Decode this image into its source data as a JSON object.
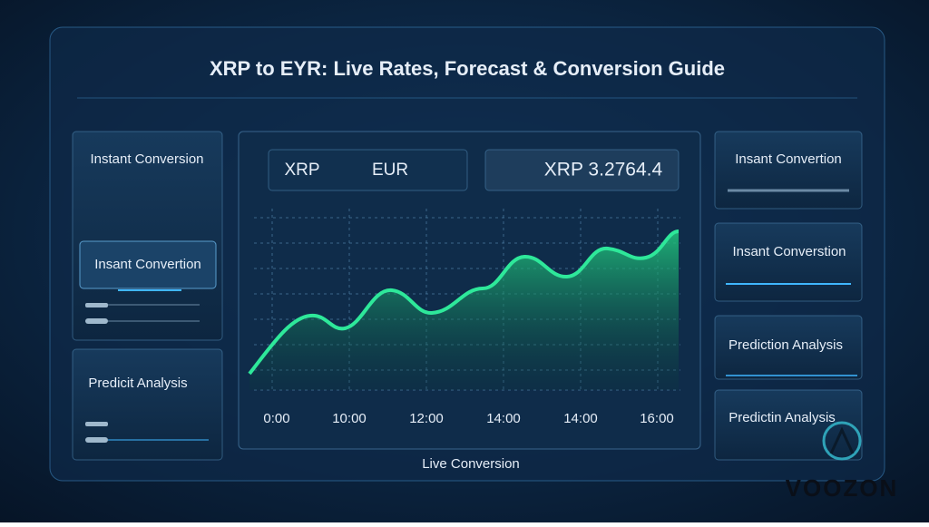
{
  "header": {
    "title": "XRP to EYR: Live Rates, Forecast & Conversion Guide"
  },
  "left_panels": [
    {
      "title": "Instant Conversion",
      "button": "Insant Convertion"
    },
    {
      "title": "Predicit Analysis"
    }
  ],
  "converter": {
    "from": "XRP",
    "to": "EUR",
    "result": "XRP 3.2764.4"
  },
  "chart": {
    "x_labels": [
      "0:00",
      "10:00",
      "12:00",
      "14:00",
      "14:00",
      "16:00"
    ],
    "caption": "Live Conversion"
  },
  "right_panels": [
    "Insant Convertion",
    "Insant Converstion",
    "Prediction Analysis",
    "Predictin Analysis"
  ],
  "logo": "VOOZON"
}
